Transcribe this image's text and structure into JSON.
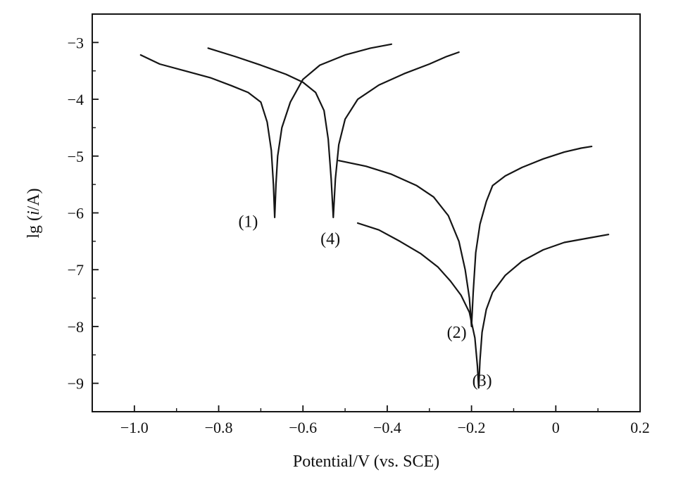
{
  "chart_data": {
    "type": "line",
    "title": "",
    "xlabel": "Potential/V (vs. SCE)",
    "ylabel_parts": [
      "lg (",
      "i",
      "/A)"
    ],
    "xlim": [
      -1.1,
      0.2
    ],
    "ylim": [
      -9.5,
      -2.5
    ],
    "xticks": [
      -1.0,
      -0.8,
      -0.6,
      -0.4,
      -0.2,
      0,
      0.2
    ],
    "xtick_labels": [
      "−1.0",
      "−0.8",
      "−0.6",
      "−0.4",
      "−0.2",
      "0",
      "0.2"
    ],
    "yticks": [
      -3,
      -4,
      -5,
      -6,
      -7,
      -8,
      -9
    ],
    "ytick_labels": [
      "−3",
      "−4",
      "−5",
      "−6",
      "−7",
      "−8",
      "−9"
    ],
    "grid": false,
    "legend": "none",
    "line_color": "#151515",
    "series": [
      {
        "label": "(1)",
        "label_anchor": [
          -0.73,
          -6.25
        ],
        "points": [
          [
            -0.985,
            -3.22
          ],
          [
            -0.94,
            -3.38
          ],
          [
            -0.88,
            -3.5
          ],
          [
            -0.82,
            -3.62
          ],
          [
            -0.77,
            -3.76
          ],
          [
            -0.73,
            -3.88
          ],
          [
            -0.7,
            -4.05
          ],
          [
            -0.685,
            -4.4
          ],
          [
            -0.675,
            -4.9
          ],
          [
            -0.67,
            -5.5
          ],
          [
            -0.667,
            -6.08
          ],
          [
            -0.664,
            -5.5
          ],
          [
            -0.66,
            -5.0
          ],
          [
            -0.65,
            -4.5
          ],
          [
            -0.63,
            -4.05
          ],
          [
            -0.6,
            -3.65
          ],
          [
            -0.56,
            -3.4
          ],
          [
            -0.5,
            -3.22
          ],
          [
            -0.44,
            -3.1
          ],
          [
            -0.39,
            -3.03
          ]
        ]
      },
      {
        "label": "(4)",
        "label_anchor": [
          -0.535,
          -6.55
        ],
        "points": [
          [
            -0.825,
            -3.1
          ],
          [
            -0.76,
            -3.25
          ],
          [
            -0.7,
            -3.4
          ],
          [
            -0.64,
            -3.56
          ],
          [
            -0.6,
            -3.7
          ],
          [
            -0.57,
            -3.88
          ],
          [
            -0.55,
            -4.2
          ],
          [
            -0.54,
            -4.7
          ],
          [
            -0.533,
            -5.4
          ],
          [
            -0.528,
            -6.08
          ],
          [
            -0.523,
            -5.4
          ],
          [
            -0.515,
            -4.8
          ],
          [
            -0.5,
            -4.35
          ],
          [
            -0.47,
            -4.0
          ],
          [
            -0.42,
            -3.75
          ],
          [
            -0.36,
            -3.55
          ],
          [
            -0.3,
            -3.38
          ],
          [
            -0.26,
            -3.25
          ],
          [
            -0.23,
            -3.17
          ]
        ]
      },
      {
        "label": "(2)",
        "label_anchor": [
          -0.235,
          -8.2
        ],
        "points": [
          [
            -0.515,
            -5.08
          ],
          [
            -0.45,
            -5.18
          ],
          [
            -0.39,
            -5.32
          ],
          [
            -0.33,
            -5.52
          ],
          [
            -0.29,
            -5.72
          ],
          [
            -0.255,
            -6.05
          ],
          [
            -0.23,
            -6.5
          ],
          [
            -0.215,
            -7.0
          ],
          [
            -0.205,
            -7.5
          ],
          [
            -0.2,
            -8.0
          ],
          [
            -0.196,
            -7.4
          ],
          [
            -0.19,
            -6.7
          ],
          [
            -0.18,
            -6.2
          ],
          [
            -0.165,
            -5.8
          ],
          [
            -0.15,
            -5.52
          ],
          [
            -0.12,
            -5.35
          ],
          [
            -0.08,
            -5.2
          ],
          [
            -0.03,
            -5.05
          ],
          [
            0.02,
            -4.93
          ],
          [
            0.06,
            -4.86
          ],
          [
            0.085,
            -4.83
          ]
        ]
      },
      {
        "label": "(3)",
        "label_anchor": [
          -0.175,
          -9.05
        ],
        "points": [
          [
            -0.47,
            -6.18
          ],
          [
            -0.42,
            -6.3
          ],
          [
            -0.37,
            -6.5
          ],
          [
            -0.32,
            -6.72
          ],
          [
            -0.28,
            -6.95
          ],
          [
            -0.25,
            -7.2
          ],
          [
            -0.225,
            -7.45
          ],
          [
            -0.205,
            -7.75
          ],
          [
            -0.192,
            -8.2
          ],
          [
            -0.186,
            -8.7
          ],
          [
            -0.183,
            -9.08
          ],
          [
            -0.18,
            -8.6
          ],
          [
            -0.175,
            -8.1
          ],
          [
            -0.165,
            -7.7
          ],
          [
            -0.15,
            -7.4
          ],
          [
            -0.12,
            -7.1
          ],
          [
            -0.08,
            -6.85
          ],
          [
            -0.03,
            -6.65
          ],
          [
            0.02,
            -6.52
          ],
          [
            0.08,
            -6.44
          ],
          [
            0.125,
            -6.38
          ]
        ]
      }
    ]
  }
}
